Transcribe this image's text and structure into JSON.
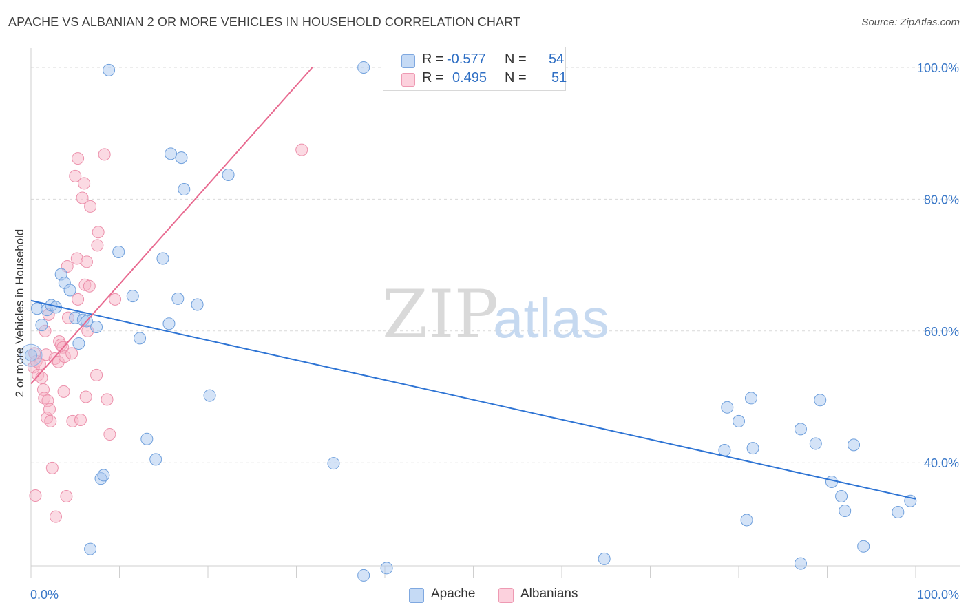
{
  "header": {
    "title": "APACHE VS ALBANIAN 2 OR MORE VEHICLES IN HOUSEHOLD CORRELATION CHART",
    "source": "Source: ZipAtlas.com"
  },
  "legend": {
    "apache": {
      "r_label": "R =",
      "r_value": "-0.577",
      "n_label": "N =",
      "n_value": "54",
      "color": "#a9c8ef"
    },
    "albanians": {
      "r_label": "R =",
      "r_value": "0.495",
      "n_label": "N =",
      "n_value": "51",
      "color": "#f7b6c8"
    }
  },
  "bottom_legend": {
    "apache": "Apache",
    "albanians": "Albanians"
  },
  "watermark": {
    "zip": "ZIP",
    "atlas": "atlas"
  },
  "chart_data": {
    "type": "scatter",
    "title": "APACHE VS ALBANIAN 2 OR MORE VEHICLES IN HOUSEHOLD CORRELATION CHART",
    "xlabel": "",
    "ylabel": "2 or more Vehicles in Household",
    "xlim": [
      0,
      100
    ],
    "ylim": [
      20,
      102
    ],
    "x_tick_labels": [
      "0.0%",
      "100.0%"
    ],
    "y_ticks": [
      40,
      60,
      80,
      100
    ],
    "y_tick_labels": [
      "40.0%",
      "60.0%",
      "80.0%",
      "100.0%"
    ],
    "grid": "horizontal dashed",
    "legend_placement": "top-center",
    "series": [
      {
        "name": "Apache",
        "color": "#a9c8ef",
        "line_color": "#2e74d4",
        "trend": {
          "x": [
            0,
            100
          ],
          "y": [
            64.6,
            34.5
          ]
        },
        "points": [
          [
            0.0,
            56.3
          ],
          [
            0.7,
            63.4
          ],
          [
            1.2,
            60.9
          ],
          [
            1.8,
            63.2
          ],
          [
            2.3,
            63.9
          ],
          [
            2.8,
            63.6
          ],
          [
            3.4,
            68.6
          ],
          [
            3.8,
            67.3
          ],
          [
            4.4,
            66.2
          ],
          [
            5.0,
            62.0
          ],
          [
            5.4,
            58.1
          ],
          [
            5.9,
            61.7
          ],
          [
            6.3,
            61.5
          ],
          [
            7.4,
            60.6
          ],
          [
            8.8,
            99.6
          ],
          [
            9.9,
            72.0
          ],
          [
            11.5,
            65.3
          ],
          [
            12.3,
            58.9
          ],
          [
            13.1,
            43.6
          ],
          [
            14.1,
            40.5
          ],
          [
            14.9,
            71.0
          ],
          [
            15.6,
            61.1
          ],
          [
            15.8,
            86.9
          ],
          [
            16.6,
            64.9
          ],
          [
            17.0,
            86.3
          ],
          [
            17.3,
            81.5
          ],
          [
            18.8,
            64.0
          ],
          [
            20.2,
            50.2
          ],
          [
            22.3,
            83.7
          ],
          [
            34.2,
            39.9
          ],
          [
            37.6,
            100.0
          ],
          [
            37.6,
            22.9
          ],
          [
            6.7,
            26.9
          ],
          [
            7.9,
            37.6
          ],
          [
            8.2,
            38.1
          ],
          [
            40.2,
            24.0
          ],
          [
            64.8,
            25.4
          ],
          [
            78.7,
            48.4
          ],
          [
            78.4,
            41.9
          ],
          [
            80.0,
            46.3
          ],
          [
            80.9,
            31.3
          ],
          [
            81.6,
            42.2
          ],
          [
            81.4,
            49.8
          ],
          [
            87.0,
            45.1
          ],
          [
            87.0,
            24.7
          ],
          [
            88.7,
            42.9
          ],
          [
            89.2,
            49.5
          ],
          [
            90.5,
            37.1
          ],
          [
            91.6,
            34.9
          ],
          [
            92.0,
            32.7
          ],
          [
            93.0,
            42.7
          ],
          [
            94.1,
            27.3
          ],
          [
            98.0,
            32.5
          ],
          [
            99.4,
            34.2
          ]
        ]
      },
      {
        "name": "Albanians",
        "color": "#f7b6c8",
        "line_color": "#e86a90",
        "trend": {
          "x": [
            0,
            31.8
          ],
          "y": [
            52.0,
            100.0
          ]
        },
        "points": [
          [
            0.3,
            54.5
          ],
          [
            0.5,
            35.0
          ],
          [
            0.6,
            55.4
          ],
          [
            0.8,
            53.3
          ],
          [
            1.0,
            55.0
          ],
          [
            1.2,
            52.9
          ],
          [
            1.4,
            51.1
          ],
          [
            1.5,
            49.8
          ],
          [
            1.6,
            60.0
          ],
          [
            1.7,
            56.4
          ],
          [
            1.8,
            46.8
          ],
          [
            1.9,
            49.4
          ],
          [
            2.1,
            48.1
          ],
          [
            2.2,
            46.3
          ],
          [
            2.4,
            39.2
          ],
          [
            2.7,
            55.8
          ],
          [
            2.8,
            31.8
          ],
          [
            3.1,
            55.3
          ],
          [
            3.2,
            58.4
          ],
          [
            3.4,
            57.9
          ],
          [
            3.6,
            57.5
          ],
          [
            3.7,
            50.8
          ],
          [
            3.8,
            56.1
          ],
          [
            4.0,
            34.9
          ],
          [
            4.1,
            69.8
          ],
          [
            4.2,
            62.0
          ],
          [
            4.6,
            56.6
          ],
          [
            4.7,
            46.3
          ],
          [
            5.0,
            83.5
          ],
          [
            5.2,
            71.0
          ],
          [
            5.3,
            64.8
          ],
          [
            5.3,
            86.2
          ],
          [
            5.6,
            46.5
          ],
          [
            5.8,
            80.2
          ],
          [
            6.0,
            82.4
          ],
          [
            6.1,
            67.0
          ],
          [
            6.2,
            50.0
          ],
          [
            6.3,
            70.5
          ],
          [
            6.4,
            60.0
          ],
          [
            6.6,
            66.8
          ],
          [
            6.7,
            78.9
          ],
          [
            7.4,
            53.3
          ],
          [
            7.5,
            73.0
          ],
          [
            7.6,
            75.0
          ],
          [
            8.3,
            86.8
          ],
          [
            8.6,
            49.6
          ],
          [
            8.9,
            44.3
          ],
          [
            9.5,
            64.8
          ],
          [
            30.6,
            87.5
          ],
          [
            0.4,
            56.6
          ],
          [
            2.0,
            62.5
          ]
        ]
      }
    ]
  }
}
